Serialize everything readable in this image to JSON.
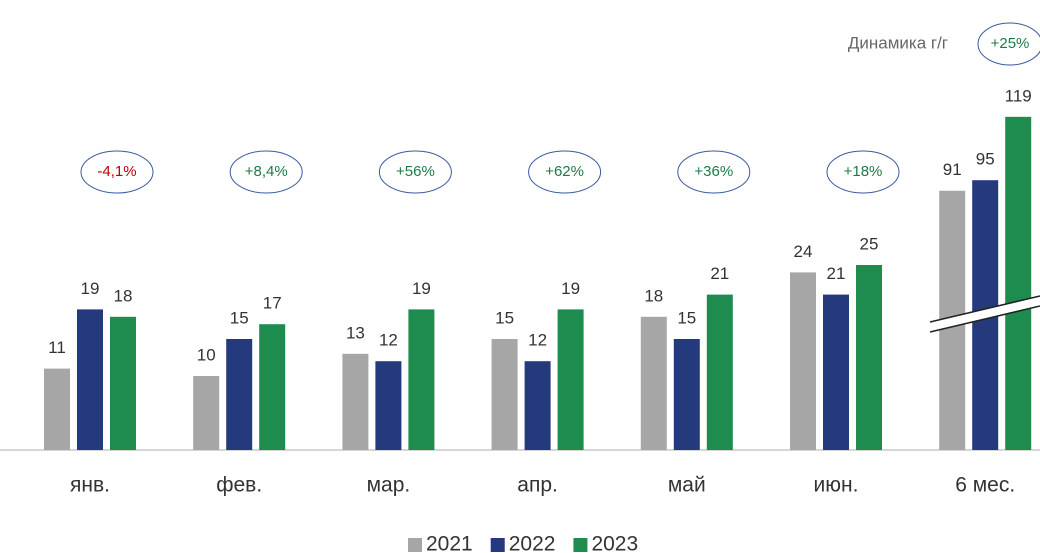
{
  "chart_data": {
    "type": "bar",
    "categories": [
      "янв.",
      "фев.",
      "мар.",
      "апр.",
      "май",
      "июн.",
      "6 мес."
    ],
    "series": [
      {
        "name": "2021",
        "color": "#a6a6a6",
        "values": [
          11,
          10,
          13,
          15,
          18,
          24,
          91
        ]
      },
      {
        "name": "2022",
        "color": "#253a7d",
        "values": [
          19,
          15,
          12,
          12,
          15,
          21,
          95
        ]
      },
      {
        "name": "2023",
        "color": "#1e8c4e",
        "values": [
          18,
          17,
          19,
          19,
          21,
          25,
          119
        ]
      }
    ],
    "yoy_label": "Динамика г/г",
    "yoy": [
      "-4,1%",
      "+8,4%",
      "+56%",
      "+62%",
      "+36%",
      "+18%",
      "+25%"
    ],
    "yoy_colors": [
      "#c00000",
      "#1e7a45",
      "#1e7a45",
      "#1e7a45",
      "#1e7a45",
      "#1e7a45",
      "#1e7a45"
    ],
    "legend": "bottom"
  }
}
